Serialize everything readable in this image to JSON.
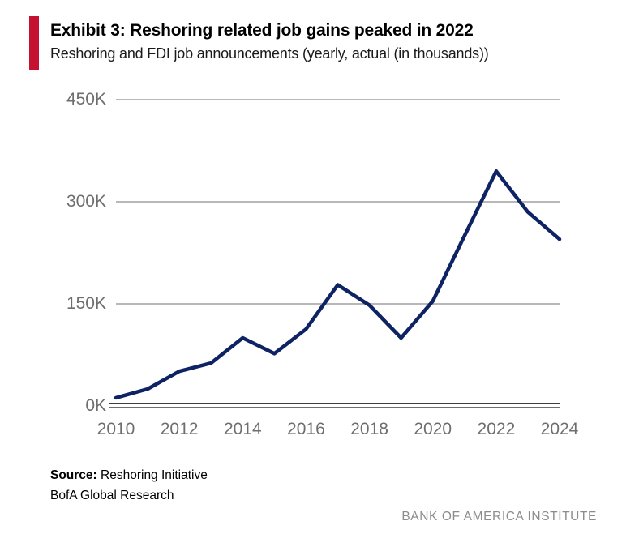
{
  "header": {
    "exhibit_title": "Exhibit 3: Reshoring related job gains peaked in 2022",
    "subtitle": "Reshoring and FDI job announcements (yearly, actual (in thousands))"
  },
  "chart_data": {
    "type": "line",
    "title": "Exhibit 3: Reshoring related job gains peaked in 2022",
    "subtitle": "Reshoring and FDI job announcements (yearly, actual (in thousands))",
    "x": [
      2010,
      2011,
      2012,
      2013,
      2014,
      2015,
      2016,
      2017,
      2018,
      2019,
      2020,
      2021,
      2022,
      2023,
      2024
    ],
    "series": [
      {
        "name": "Reshoring and FDI job announcements (in thousands)",
        "values": [
          12,
          25,
          51,
          63,
          100,
          77,
          113,
          178,
          148,
          100,
          154,
          250,
          345,
          285,
          245
        ]
      }
    ],
    "unit": "K",
    "ylim": [
      0,
      450
    ],
    "yticks": [
      0,
      150,
      300,
      450
    ],
    "ytick_labels": [
      "0K",
      "150K",
      "300K",
      "450K"
    ],
    "xtick_positions": [
      2010,
      2012,
      2014,
      2016,
      2018,
      2020,
      2022,
      2024
    ],
    "xtick_labels": [
      "2010",
      "2012",
      "2014",
      "2016",
      "2018",
      "2020",
      "2022",
      "2024"
    ],
    "grid": "horizontal",
    "legend": "none",
    "line_color": "#0e2363",
    "gridline_color": "#b8b8b8"
  },
  "footer": {
    "source_label": "Source:",
    "source_line1": "Reshoring Initiative",
    "source_line2": "BofA Global Research",
    "institute": "BANK OF AMERICA INSTITUTE"
  },
  "colors": {
    "accent_red": "#c41230",
    "line_navy": "#0e2363",
    "axis_label_gray": "#6e6e6e",
    "institute_gray": "#8c8c8c"
  }
}
